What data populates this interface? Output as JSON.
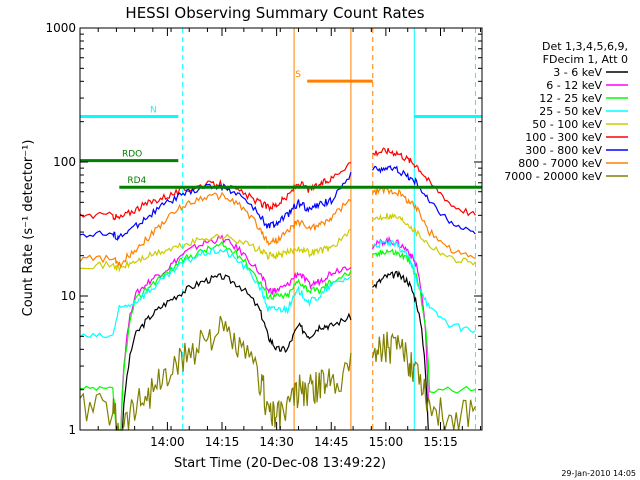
{
  "chart_data": {
    "type": "line",
    "title": "HESSI Observing Summary Count Rates",
    "xlabel": "Start Time (20-Dec-08 13:49:22)",
    "ylabel": "Count Rate (s⁻¹ detector⁻¹)",
    "yscale": "log",
    "ylim": [
      1,
      1000
    ],
    "xlim_minutes": [
      13.6,
      15.44
    ],
    "xlim_note": "x values are clock times (hours:minutes as decimal hours)",
    "y_ticks": [
      {
        "value": 1,
        "label": "1"
      },
      {
        "value": 10,
        "label": "10"
      },
      {
        "value": 100,
        "label": "100"
      },
      {
        "value": 1000,
        "label": "1000"
      }
    ],
    "x_ticks": [
      {
        "value": 14.0,
        "label": "14:00"
      },
      {
        "value": 14.25,
        "label": "14:15"
      },
      {
        "value": 14.5,
        "label": "14:30"
      },
      {
        "value": 14.75,
        "label": "14:45"
      },
      {
        "value": 15.0,
        "label": "15:00"
      },
      {
        "value": 15.25,
        "label": "15:15"
      }
    ],
    "legend": {
      "placement": "right",
      "header": [
        "Det 1,3,4,5,6,9,",
        "FDecim 1, Att 0"
      ],
      "entries": [
        {
          "label": "3 - 6 keV",
          "color": "#000000"
        },
        {
          "label": "6 - 12 keV",
          "color": "#ff00ff"
        },
        {
          "label": "12 - 25 keV",
          "color": "#00ff00"
        },
        {
          "label": "25 - 50 keV",
          "color": "#00ffff"
        },
        {
          "label": "50 - 100 keV",
          "color": "#cccc00"
        },
        {
          "label": "100 - 300 keV",
          "color": "#ff0000"
        },
        {
          "label": "300 - 800 keV",
          "color": "#0000ff"
        },
        {
          "label": "800 - 7000 keV",
          "color": "#ff8000"
        },
        {
          "label": "7000 - 20000 keV",
          "color": "#808000"
        }
      ]
    },
    "flags": [
      {
        "label": "N",
        "color": "#00ffff",
        "segments": [
          [
            13.6,
            14.05
          ],
          [
            15.13,
            15.44
          ]
        ],
        "level": 0.9
      },
      {
        "label": "RDO",
        "color": "#008000",
        "segments": [
          [
            13.6,
            14.05
          ]
        ],
        "level": 0.85
      },
      {
        "label": "RD4",
        "color": "#008000",
        "segments": [
          [
            13.78,
            14.46
          ],
          [
            14.46,
            15.44
          ]
        ],
        "level": 0.82
      },
      {
        "label": "S",
        "color": "#ff8000",
        "segments": [
          [
            14.64,
            14.94
          ]
        ],
        "level": 0.94
      }
    ],
    "vertical_markers": [
      {
        "x": 13.6,
        "color": "#00ffff",
        "style": "solid"
      },
      {
        "x": 14.07,
        "color": "#00ffff",
        "style": "dashed"
      },
      {
        "x": 14.58,
        "color": "#ff8000",
        "style": "solid"
      },
      {
        "x": 14.84,
        "color": "#ff8000",
        "style": "solid"
      },
      {
        "x": 14.94,
        "color": "#ff8000",
        "style": "dashed"
      },
      {
        "x": 15.13,
        "color": "#00ffff",
        "style": "solid"
      },
      {
        "x": 15.41,
        "color": "#00ffff",
        "style": "dashed"
      }
    ],
    "gap": [
      14.84,
      14.93
    ],
    "series": [
      {
        "name": "3 - 6 keV",
        "color": "#000000",
        "points": [
          [
            13.75,
            0
          ],
          [
            13.78,
            0
          ],
          [
            13.85,
            5
          ],
          [
            13.92,
            7
          ],
          [
            14.0,
            9
          ],
          [
            14.08,
            11
          ],
          [
            14.17,
            13
          ],
          [
            14.25,
            14
          ],
          [
            14.33,
            12
          ],
          [
            14.42,
            8
          ],
          [
            14.46,
            5
          ],
          [
            14.5,
            4
          ],
          [
            14.55,
            4
          ],
          [
            14.6,
            6
          ],
          [
            14.65,
            5
          ],
          [
            14.7,
            6
          ],
          [
            14.75,
            6
          ],
          [
            14.84,
            7
          ],
          [
            14.95,
            12
          ],
          [
            15.0,
            14
          ],
          [
            15.05,
            14.5
          ],
          [
            15.1,
            13
          ],
          [
            15.14,
            9
          ],
          [
            15.2,
            0
          ]
        ]
      },
      {
        "name": "6 - 12 keV",
        "color": "#ff00ff",
        "points": [
          [
            13.6,
            0
          ],
          [
            13.78,
            0
          ],
          [
            13.85,
            10
          ],
          [
            13.92,
            13
          ],
          [
            14.0,
            16
          ],
          [
            14.08,
            21
          ],
          [
            14.17,
            25
          ],
          [
            14.25,
            27
          ],
          [
            14.33,
            22
          ],
          [
            14.42,
            15
          ],
          [
            14.46,
            11
          ],
          [
            14.5,
            11
          ],
          [
            14.55,
            12
          ],
          [
            14.6,
            15
          ],
          [
            14.65,
            12
          ],
          [
            14.7,
            13
          ],
          [
            14.75,
            15
          ],
          [
            14.84,
            17
          ],
          [
            14.95,
            24
          ],
          [
            15.0,
            26
          ],
          [
            15.05,
            25
          ],
          [
            15.1,
            22
          ],
          [
            15.14,
            17
          ],
          [
            15.2,
            0
          ]
        ]
      },
      {
        "name": "12 - 25 keV",
        "color": "#00ff00",
        "points": [
          [
            13.6,
            2
          ],
          [
            13.75,
            2
          ],
          [
            13.78,
            0
          ],
          [
            13.85,
            9
          ],
          [
            13.92,
            12
          ],
          [
            14.0,
            15
          ],
          [
            14.08,
            19
          ],
          [
            14.17,
            22
          ],
          [
            14.25,
            24
          ],
          [
            14.33,
            20
          ],
          [
            14.42,
            13
          ],
          [
            14.46,
            10
          ],
          [
            14.5,
            10
          ],
          [
            14.55,
            10
          ],
          [
            14.6,
            13
          ],
          [
            14.65,
            11
          ],
          [
            14.7,
            11
          ],
          [
            14.75,
            13
          ],
          [
            14.84,
            15
          ],
          [
            14.95,
            20
          ],
          [
            15.0,
            22
          ],
          [
            15.05,
            21
          ],
          [
            15.1,
            19
          ],
          [
            15.14,
            14
          ],
          [
            15.2,
            2
          ],
          [
            15.41,
            2
          ]
        ]
      },
      {
        "name": "25 - 50 keV",
        "color": "#00ffff",
        "points": [
          [
            13.6,
            5
          ],
          [
            13.75,
            5
          ],
          [
            13.78,
            8
          ],
          [
            13.85,
            9
          ],
          [
            13.92,
            11
          ],
          [
            14.0,
            14
          ],
          [
            14.08,
            18
          ],
          [
            14.17,
            21
          ],
          [
            14.25,
            22
          ],
          [
            14.33,
            18
          ],
          [
            14.42,
            12
          ],
          [
            14.46,
            8
          ],
          [
            14.5,
            8
          ],
          [
            14.55,
            8
          ],
          [
            14.6,
            11
          ],
          [
            14.65,
            9
          ],
          [
            14.7,
            10
          ],
          [
            14.75,
            12
          ],
          [
            14.84,
            14
          ],
          [
            14.95,
            24
          ],
          [
            15.0,
            25
          ],
          [
            15.05,
            24
          ],
          [
            15.1,
            20
          ],
          [
            15.14,
            13
          ],
          [
            15.2,
            8
          ],
          [
            15.3,
            6
          ],
          [
            15.41,
            5.5
          ]
        ]
      },
      {
        "name": "50 - 100 keV",
        "color": "#cccc00",
        "points": [
          [
            13.6,
            17
          ],
          [
            13.75,
            17
          ],
          [
            13.78,
            16
          ],
          [
            13.85,
            18
          ],
          [
            13.92,
            20
          ],
          [
            14.0,
            22
          ],
          [
            14.08,
            24
          ],
          [
            14.17,
            27
          ],
          [
            14.25,
            28
          ],
          [
            14.33,
            26
          ],
          [
            14.42,
            22
          ],
          [
            14.46,
            20
          ],
          [
            14.5,
            20
          ],
          [
            14.55,
            21
          ],
          [
            14.6,
            23
          ],
          [
            14.65,
            21
          ],
          [
            14.7,
            22
          ],
          [
            14.75,
            23
          ],
          [
            14.84,
            30
          ],
          [
            14.95,
            38
          ],
          [
            15.0,
            40
          ],
          [
            15.05,
            39
          ],
          [
            15.1,
            35
          ],
          [
            15.14,
            30
          ],
          [
            15.2,
            24
          ],
          [
            15.3,
            19
          ],
          [
            15.41,
            18
          ]
        ]
      },
      {
        "name": "100 - 300 keV",
        "color": "#ff0000",
        "points": [
          [
            13.6,
            40
          ],
          [
            13.75,
            40
          ],
          [
            13.78,
            38
          ],
          [
            13.85,
            44
          ],
          [
            13.92,
            50
          ],
          [
            14.0,
            56
          ],
          [
            14.08,
            62
          ],
          [
            14.17,
            68
          ],
          [
            14.25,
            68
          ],
          [
            14.33,
            60
          ],
          [
            14.42,
            50
          ],
          [
            14.46,
            46
          ],
          [
            14.5,
            48
          ],
          [
            14.55,
            55
          ],
          [
            14.6,
            70
          ],
          [
            14.65,
            62
          ],
          [
            14.7,
            68
          ],
          [
            14.75,
            75
          ],
          [
            14.84,
            100
          ],
          [
            14.95,
            118
          ],
          [
            15.0,
            122
          ],
          [
            15.05,
            118
          ],
          [
            15.1,
            105
          ],
          [
            15.14,
            95
          ],
          [
            15.2,
            70
          ],
          [
            15.3,
            48
          ],
          [
            15.41,
            40
          ]
        ]
      },
      {
        "name": "300 - 800 keV",
        "color": "#0000ff",
        "points": [
          [
            13.6,
            29
          ],
          [
            13.75,
            29
          ],
          [
            13.78,
            27
          ],
          [
            13.85,
            33
          ],
          [
            13.92,
            40
          ],
          [
            14.0,
            50
          ],
          [
            14.08,
            58
          ],
          [
            14.17,
            65
          ],
          [
            14.25,
            66
          ],
          [
            14.33,
            57
          ],
          [
            14.42,
            40
          ],
          [
            14.46,
            33
          ],
          [
            14.5,
            35
          ],
          [
            14.55,
            40
          ],
          [
            14.6,
            50
          ],
          [
            14.65,
            44
          ],
          [
            14.7,
            48
          ],
          [
            14.75,
            52
          ],
          [
            14.84,
            80
          ],
          [
            14.95,
            88
          ],
          [
            15.0,
            90
          ],
          [
            15.05,
            88
          ],
          [
            15.1,
            78
          ],
          [
            15.14,
            70
          ],
          [
            15.2,
            50
          ],
          [
            15.3,
            35
          ],
          [
            15.41,
            29
          ]
        ]
      },
      {
        "name": "800 - 7000 keV",
        "color": "#ff8000",
        "points": [
          [
            13.6,
            19
          ],
          [
            13.75,
            19
          ],
          [
            13.78,
            17
          ],
          [
            13.85,
            22
          ],
          [
            13.92,
            28
          ],
          [
            14.0,
            38
          ],
          [
            14.08,
            48
          ],
          [
            14.17,
            55
          ],
          [
            14.25,
            56
          ],
          [
            14.33,
            48
          ],
          [
            14.42,
            32
          ],
          [
            14.46,
            25
          ],
          [
            14.5,
            26
          ],
          [
            14.55,
            30
          ],
          [
            14.6,
            36
          ],
          [
            14.65,
            32
          ],
          [
            14.7,
            34
          ],
          [
            14.75,
            38
          ],
          [
            14.84,
            52
          ],
          [
            14.95,
            60
          ],
          [
            15.0,
            62
          ],
          [
            15.05,
            60
          ],
          [
            15.1,
            52
          ],
          [
            15.14,
            45
          ],
          [
            15.2,
            30
          ],
          [
            15.3,
            22
          ],
          [
            15.41,
            19
          ]
        ]
      },
      {
        "name": "7000 - 20000 keV",
        "color": "#808000",
        "points": [
          [
            13.6,
            1.5
          ],
          [
            13.75,
            1.5
          ],
          [
            13.78,
            1.0
          ],
          [
            13.85,
            1.5
          ],
          [
            13.92,
            2
          ],
          [
            14.0,
            2.5
          ],
          [
            14.08,
            3.5
          ],
          [
            14.17,
            5
          ],
          [
            14.25,
            5.5
          ],
          [
            14.33,
            4
          ],
          [
            14.42,
            2.5
          ],
          [
            14.46,
            1.5
          ],
          [
            14.5,
            1.2
          ],
          [
            14.55,
            1.5
          ],
          [
            14.6,
            2
          ],
          [
            14.65,
            2
          ],
          [
            14.7,
            2.2
          ],
          [
            14.75,
            2.5
          ],
          [
            14.84,
            3
          ],
          [
            14.95,
            4
          ],
          [
            15.0,
            4.5
          ],
          [
            15.05,
            4
          ],
          [
            15.1,
            3.5
          ],
          [
            15.14,
            3
          ],
          [
            15.2,
            1.5
          ],
          [
            15.3,
            1.2
          ],
          [
            15.41,
            1.5
          ]
        ]
      }
    ]
  },
  "footer": {
    "timestamp": "29-Jan-2010 14:05"
  }
}
